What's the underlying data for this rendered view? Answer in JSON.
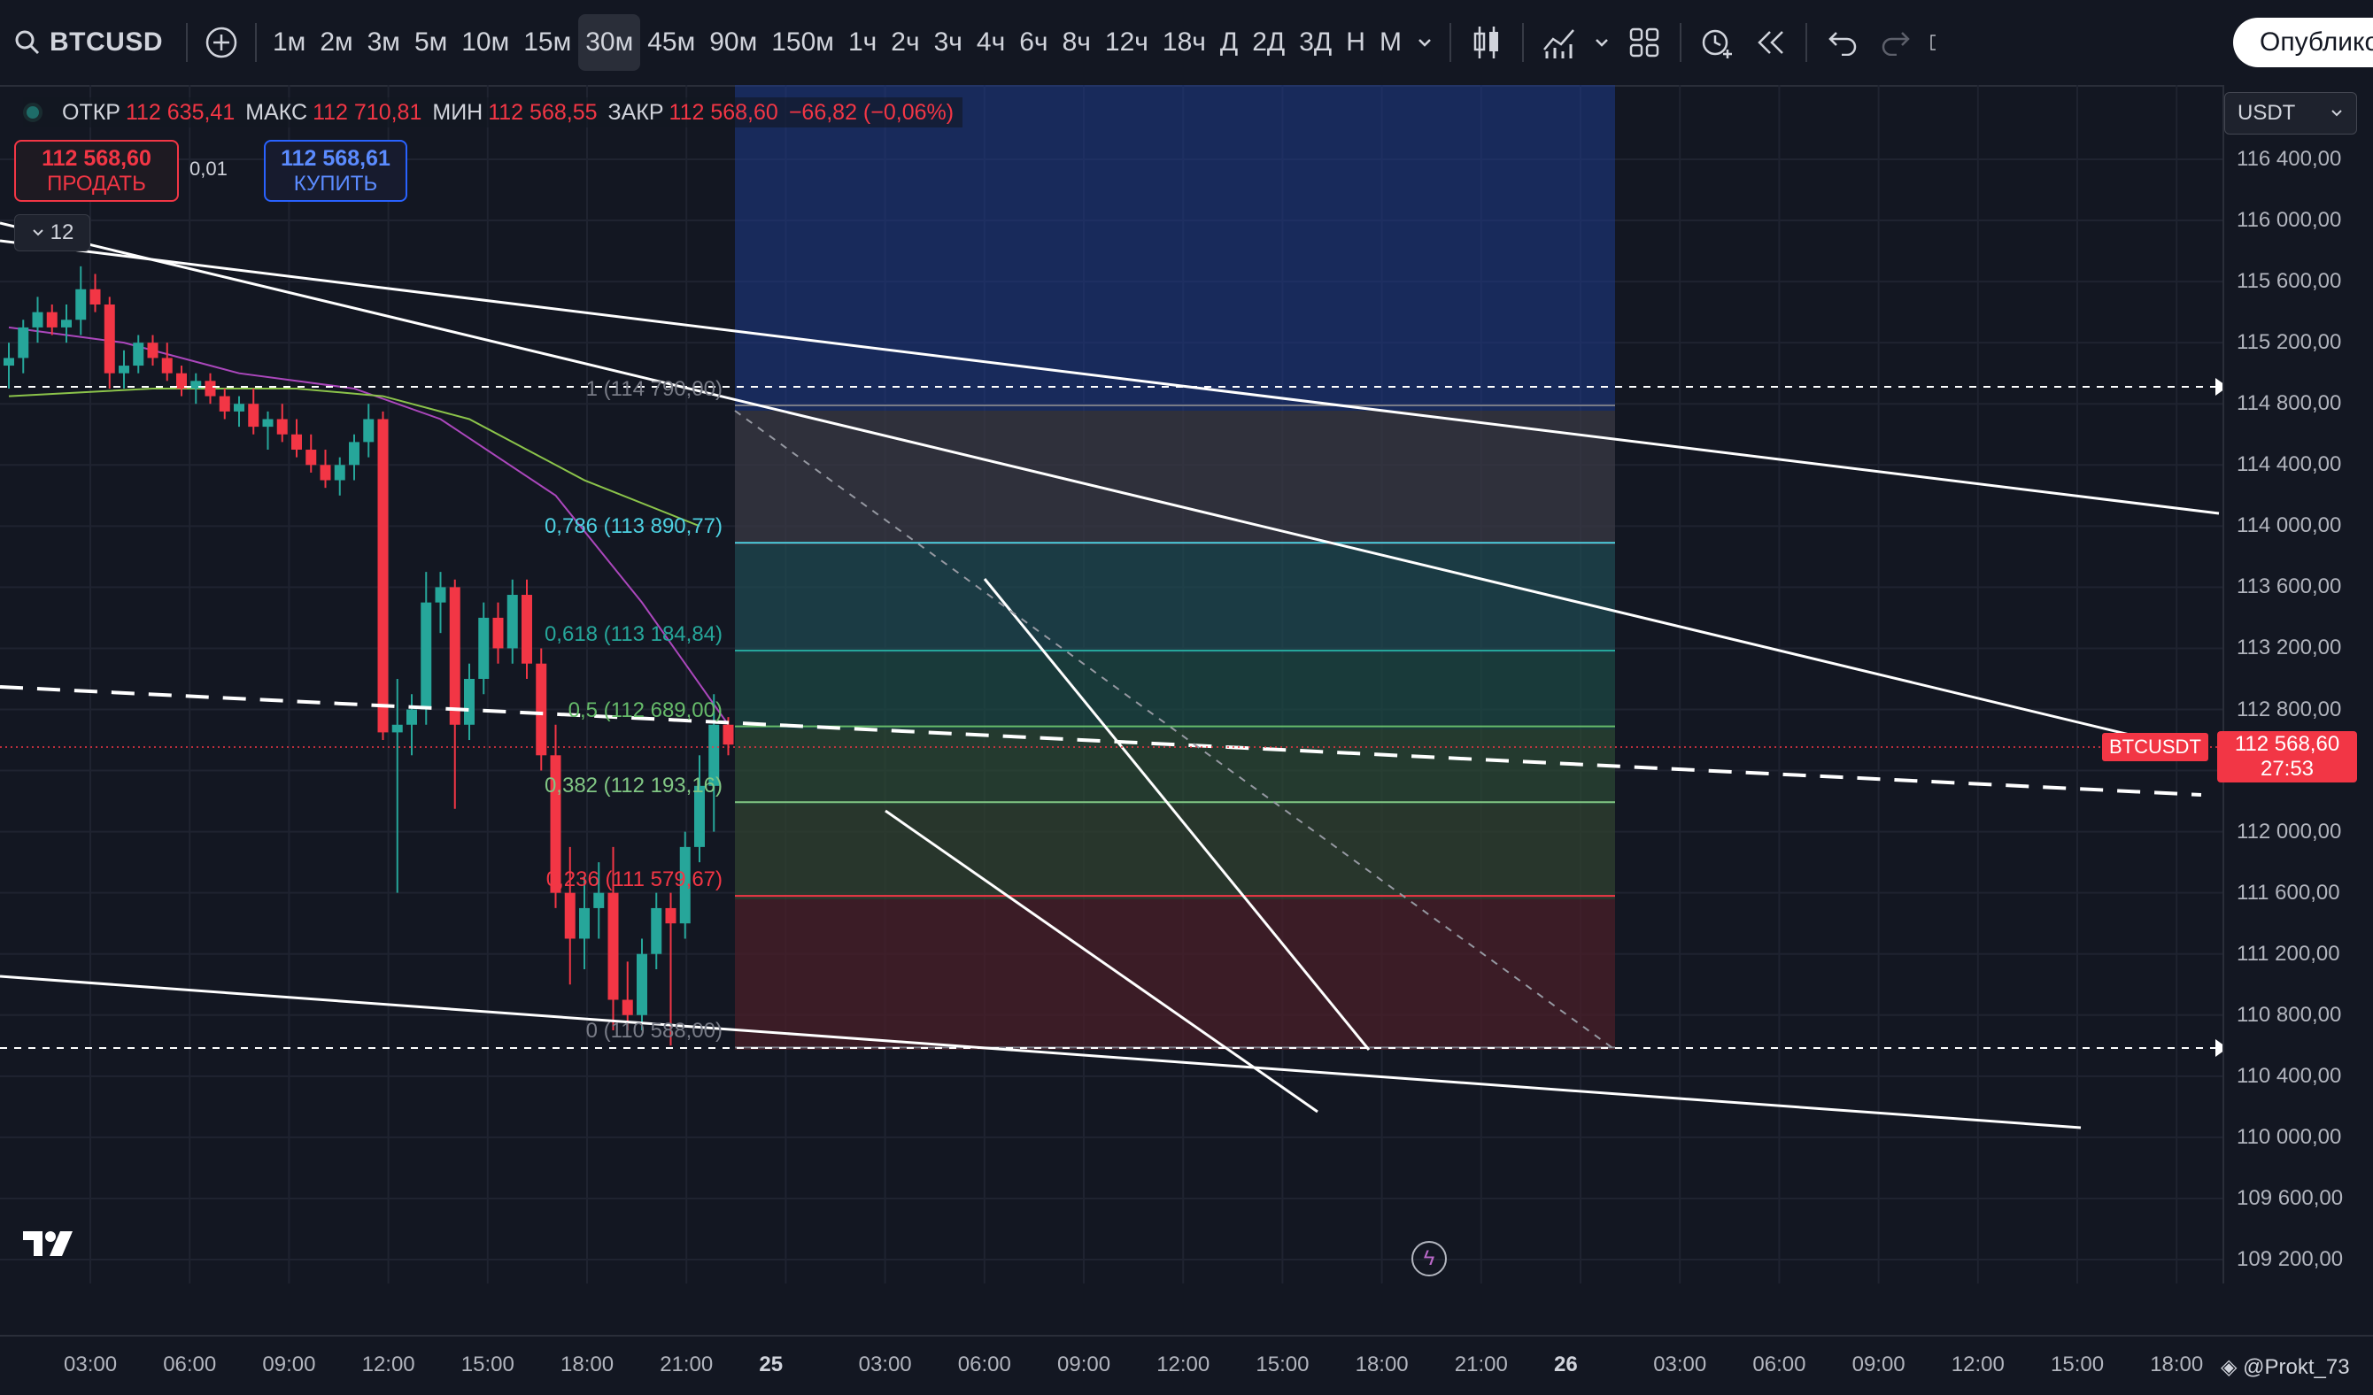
{
  "toolbar": {
    "symbol": "BTCUSD",
    "intervals": [
      "1м",
      "2м",
      "3м",
      "5м",
      "10м",
      "15м",
      "30м",
      "45м",
      "90м",
      "150м",
      "1ч",
      "2ч",
      "3ч",
      "4ч",
      "6ч",
      "8ч",
      "12ч",
      "18ч",
      "Д",
      "2Д",
      "3Д",
      "Н",
      "М"
    ],
    "active_interval": "30м",
    "publish_label": "Опублико"
  },
  "legend": {
    "open_label": "ОТКР",
    "open": "112 635,41",
    "high_label": "МАКС",
    "high": "112 710,81",
    "low_label": "МИН",
    "low": "112 568,55",
    "close_label": "ЗАКР",
    "close": "112 568,60",
    "change": "−66,82 (−0,06%)"
  },
  "trade": {
    "sell_price": "112 568,60",
    "sell_label": "ПРОДАТЬ",
    "spread": "0,01",
    "buy_price": "112 568,61",
    "buy_label": "КУПИТЬ",
    "indicators_count": "12"
  },
  "currency": "USDT",
  "price_axis": {
    "ticks": [
      116400,
      116000,
      115600,
      115200,
      114800,
      114400,
      114000,
      113600,
      113200,
      112800,
      112400,
      112000,
      111600,
      111200,
      110800,
      110400,
      110000,
      109600,
      109200
    ],
    "tick_labels": [
      "116 400,00",
      "116 000,00",
      "115 600,00",
      "115 200,00",
      "114 800,00",
      "114 400,00",
      "114 000,00",
      "113 600,00",
      "113 200,00",
      "112 800,00",
      "112 400,00",
      "112 000,00",
      "111 600,00",
      "111 200,00",
      "110 800,00",
      "110 400,00",
      "110 000,00",
      "109 600,00",
      "109 200,00"
    ],
    "last_price": "112 568,60",
    "countdown": "27:53",
    "symbol_tag": "BTCUSDT"
  },
  "time_axis": {
    "labels": [
      "03:00",
      "06:00",
      "09:00",
      "12:00",
      "15:00",
      "18:00",
      "21:00",
      "25",
      "03:00",
      "06:00",
      "09:00",
      "12:00",
      "15:00",
      "18:00",
      "21:00",
      "26",
      "03:00",
      "06:00",
      "09:00",
      "12:00",
      "15:00",
      "18:00"
    ]
  },
  "fib_levels": [
    {
      "label": "1 (114 790,00)",
      "price": 114790,
      "color": "#787b86"
    },
    {
      "label": "0,786 (113 890,77)",
      "price": 113890.77,
      "color": "#4dd0e1"
    },
    {
      "label": "0,618 (113 184,84)",
      "price": 113184.84,
      "color": "#26a69a"
    },
    {
      "label": "0,5 (112 689,00)",
      "price": 112689,
      "color": "#66bb6a"
    },
    {
      "label": "0,382 (112 193,16)",
      "price": 112193.16,
      "color": "#81c784"
    },
    {
      "label": "0,236 (111 579,67)",
      "price": 111579.67,
      "color": "#f23645"
    },
    {
      "label": "0 (110 588,00)",
      "price": 110588,
      "color": "#787b86"
    }
  ],
  "watermark": "@Prokt_73",
  "colors": {
    "up": "#26a69a",
    "down": "#f23645",
    "background": "#131722"
  },
  "chart_data": {
    "type": "candlestick",
    "symbol": "BTCUSD",
    "interval": "30м",
    "ylim": [
      109000,
      116600
    ],
    "candles": [
      [
        115050,
        115200,
        114900,
        115100
      ],
      [
        115100,
        115350,
        115000,
        115300
      ],
      [
        115300,
        115500,
        115200,
        115400
      ],
      [
        115400,
        115450,
        115250,
        115300
      ],
      [
        115300,
        115450,
        115200,
        115350
      ],
      [
        115350,
        115700,
        115250,
        115550
      ],
      [
        115550,
        115650,
        115400,
        115450
      ],
      [
        115450,
        115500,
        114900,
        115000
      ],
      [
        115000,
        115150,
        114900,
        115050
      ],
      [
        115050,
        115250,
        115000,
        115200
      ],
      [
        115200,
        115250,
        115050,
        115100
      ],
      [
        115100,
        115200,
        114950,
        115000
      ],
      [
        115000,
        115050,
        114850,
        114900
      ],
      [
        114900,
        115000,
        114800,
        114950
      ],
      [
        114950,
        115000,
        114800,
        114850
      ],
      [
        114850,
        114900,
        114700,
        114750
      ],
      [
        114750,
        114850,
        114650,
        114800
      ],
      [
        114800,
        114900,
        114600,
        114650
      ],
      [
        114650,
        114750,
        114500,
        114700
      ],
      [
        114700,
        114800,
        114550,
        114600
      ],
      [
        114600,
        114700,
        114450,
        114500
      ],
      [
        114500,
        114600,
        114350,
        114400
      ],
      [
        114400,
        114500,
        114250,
        114300
      ],
      [
        114300,
        114450,
        114200,
        114400
      ],
      [
        114400,
        114600,
        114300,
        114550
      ],
      [
        114550,
        114800,
        114450,
        114700
      ],
      [
        114700,
        114750,
        112600,
        112650
      ],
      [
        112650,
        113000,
        111600,
        112700
      ],
      [
        112700,
        112900,
        112500,
        112800
      ],
      [
        112800,
        113700,
        112700,
        113500
      ],
      [
        113500,
        113700,
        113300,
        113600
      ],
      [
        113600,
        113650,
        112150,
        112700
      ],
      [
        112700,
        113100,
        112600,
        113000
      ],
      [
        113000,
        113500,
        112900,
        113400
      ],
      [
        113400,
        113500,
        113100,
        113200
      ],
      [
        113200,
        113650,
        113100,
        113550
      ],
      [
        113550,
        113650,
        113000,
        113100
      ],
      [
        113100,
        113200,
        112400,
        112500
      ],
      [
        112500,
        112700,
        111500,
        111600
      ],
      [
        111600,
        111900,
        111000,
        111300
      ],
      [
        111300,
        111700,
        111100,
        111500
      ],
      [
        111500,
        111800,
        111300,
        111600
      ],
      [
        111600,
        111900,
        110700,
        110900
      ],
      [
        110900,
        111150,
        110700,
        110800
      ],
      [
        110800,
        111300,
        110700,
        111200
      ],
      [
        111200,
        111600,
        111100,
        111500
      ],
      [
        111500,
        111600,
        110600,
        111400
      ],
      [
        111400,
        112000,
        111300,
        111900
      ],
      [
        111900,
        112500,
        111800,
        112300
      ],
      [
        112300,
        112900,
        112000,
        112700
      ],
      [
        112700,
        112750,
        112500,
        112570
      ]
    ],
    "series": [
      {
        "name": "",
        "type": "line",
        "color": "#ab47bc",
        "points": [
          [
            0,
            115300
          ],
          [
            8,
            115200
          ],
          [
            16,
            115000
          ],
          [
            24,
            114900
          ],
          [
            30,
            114700
          ],
          [
            38,
            114200
          ],
          [
            44,
            113500
          ],
          [
            50,
            112700
          ]
        ]
      },
      {
        "name": "",
        "type": "line",
        "color": "#8bc34a",
        "points": [
          [
            0,
            114850
          ],
          [
            10,
            114900
          ],
          [
            20,
            114900
          ],
          [
            26,
            114850
          ],
          [
            32,
            114700
          ],
          [
            40,
            114300
          ],
          [
            48,
            114000
          ]
        ]
      }
    ]
  }
}
